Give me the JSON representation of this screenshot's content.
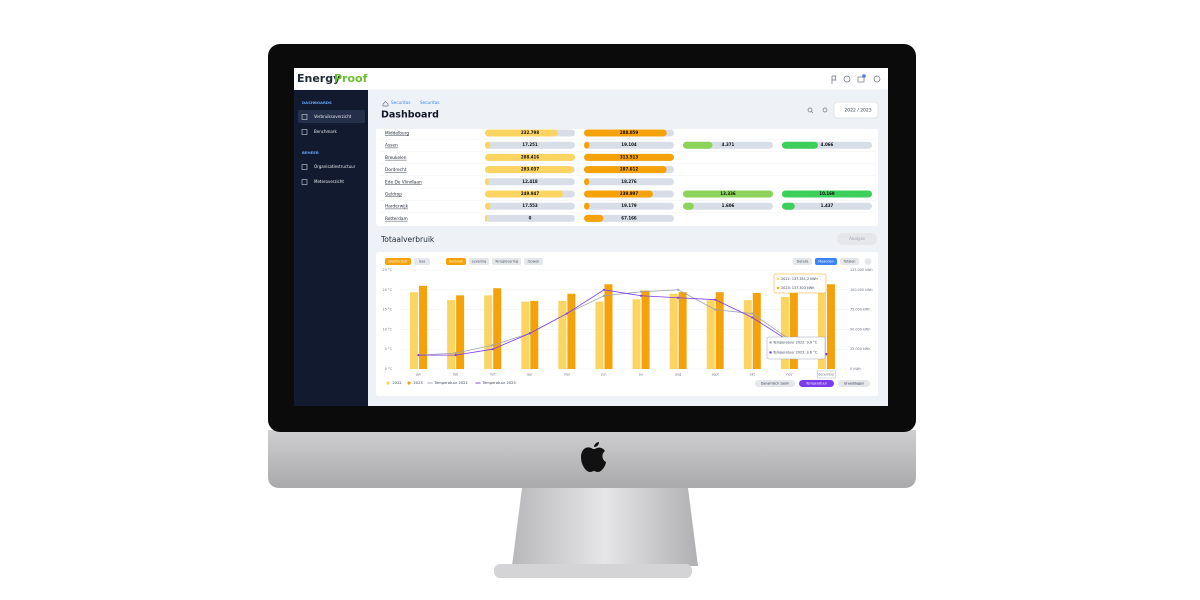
{
  "top_bar": {
    "logo_energy": "Energy",
    "logo_proof": "Proof"
  },
  "sidebar": {
    "sections": [
      {
        "title": "DASHBOARDS",
        "items": [
          "Verbruiksoverzicht",
          "Benchmark"
        ]
      },
      {
        "title": "BEHEER",
        "items": [
          "Organisatiestructuur",
          "Meteroverzicht"
        ]
      }
    ]
  },
  "header": {
    "breadcrumb": [
      "Securitas",
      "Securitas"
    ],
    "title": "Dashboard",
    "period": "2022 / 2023"
  },
  "table": {
    "rows": [
      {
        "name": "Middelburg",
        "cells": [
          {
            "value": 232798,
            "label": "232.798"
          },
          {
            "value": 288059,
            "label": "288.059"
          },
          null,
          null
        ]
      },
      {
        "name": "Assen",
        "cells": [
          {
            "value": 17251,
            "label": "17.251"
          },
          {
            "value": 19104,
            "label": "19.104"
          },
          {
            "value": 4371,
            "label": "4.371"
          },
          {
            "value": 4066,
            "label": "4.066"
          }
        ]
      },
      {
        "name": "Breukelen",
        "cells": [
          {
            "value": 288416,
            "label": "288.416"
          },
          {
            "value": 313513,
            "label": "313.513"
          },
          null,
          null
        ]
      },
      {
        "name": "Dordrecht",
        "cells": [
          {
            "value": 283037,
            "label": "283.037"
          },
          {
            "value": 287612,
            "label": "287.612"
          },
          null,
          null
        ]
      },
      {
        "name": "Ede De Vlindlaan",
        "cells": [
          {
            "value": 12418,
            "label": "12.418"
          },
          {
            "value": 18276,
            "label": "18.276"
          },
          null,
          null
        ]
      },
      {
        "name": "Geldrop",
        "cells": [
          {
            "value": 249947,
            "label": "249.947"
          },
          {
            "value": 239997,
            "label": "239.997"
          },
          {
            "value": 13336,
            "label": "13.336"
          },
          {
            "value": 10169,
            "label": "10.169"
          }
        ]
      },
      {
        "name": "Harderwijk",
        "cells": [
          {
            "value": 17553,
            "label": "17.553"
          },
          {
            "value": 19179,
            "label": "19.179"
          },
          {
            "value": 1606,
            "label": "1.606"
          },
          {
            "value": 1437,
            "label": "1.437"
          }
        ]
      },
      {
        "name": "Rotterdam",
        "cells": [
          {
            "value": 0,
            "label": "0"
          },
          {
            "value": 67166,
            "label": "67.166"
          },
          null,
          null
        ]
      }
    ]
  },
  "chart": {
    "type": "bar",
    "title": "Totaalverbruik",
    "analyse": "Analyse",
    "energy_tabs": [
      "Elektriciteit",
      "Gas"
    ],
    "flow_tabs": [
      "Verbruik",
      "Levering",
      "Teruglevering",
      "Opwek"
    ],
    "view_tabs": [
      "Details",
      "Maanden",
      "Totalen"
    ],
    "categories": [
      "jan",
      "feb",
      "mrt",
      "apr",
      "mei",
      "jun",
      "jul",
      "aug",
      "sept",
      "okt",
      "nov",
      "december"
    ],
    "series": [
      {
        "name": "2022",
        "color": "#fcd462",
        "values": [
          97000,
          87000,
          93000,
          85000,
          86000,
          85000,
          88000,
          95000,
          87000,
          87000,
          91000,
          106000
        ]
      },
      {
        "name": "2023",
        "color": "#f5a20a",
        "values": [
          105000,
          93000,
          102000,
          86000,
          95000,
          107000,
          99000,
          97000,
          97000,
          96000,
          100000,
          107000
        ]
      },
      {
        "name": "Temperatuur 2022",
        "color": "#9ca3af",
        "axis": "y2",
        "values": [
          3.5,
          4,
          6,
          9,
          14,
          18.5,
          19.5,
          20,
          15,
          14,
          7.5,
          3.6
        ]
      },
      {
        "name": "Temperatuur 2023",
        "color": "#7c3aed",
        "axis": "y2",
        "values": [
          3.5,
          3.5,
          5,
          9,
          14,
          20,
          18.5,
          18,
          17.5,
          13,
          7,
          3.8
        ]
      }
    ],
    "ylim": [
      0,
      125000
    ],
    "yticks": [
      {
        "value": 0,
        "label": "0 kWh"
      },
      {
        "value": 25000,
        "label": "25.000 kWh"
      },
      {
        "value": 50000,
        "label": "50.000 kWh"
      },
      {
        "value": 75000,
        "label": "75.000 kWh"
      },
      {
        "value": 100000,
        "label": "100.000 kWh"
      },
      {
        "value": 125000,
        "label": "125.000 kWh"
      }
    ],
    "y2lim": [
      0,
      25
    ],
    "y2ticks": [
      {
        "value": 0,
        "label": "0 °C"
      },
      {
        "value": 5,
        "label": "5 °C"
      },
      {
        "value": 10,
        "label": "10 °C"
      },
      {
        "value": 15,
        "label": "15 °C"
      },
      {
        "value": 20,
        "label": "20 °C"
      },
      {
        "value": 25,
        "label": "25 °C"
      }
    ],
    "grid": true,
    "tooltip_bars": [
      "2022: 137.351,2 kWh",
      "2023: 137.303 kWh"
    ],
    "tooltip_temps": [
      "Temperatuur 2022: 9,9 °C",
      "Temperatuur 2023: 3,6 °C"
    ],
    "buttons": [
      "Dynamisch zoom",
      "Temperatuur",
      "Graaddagen"
    ]
  }
}
